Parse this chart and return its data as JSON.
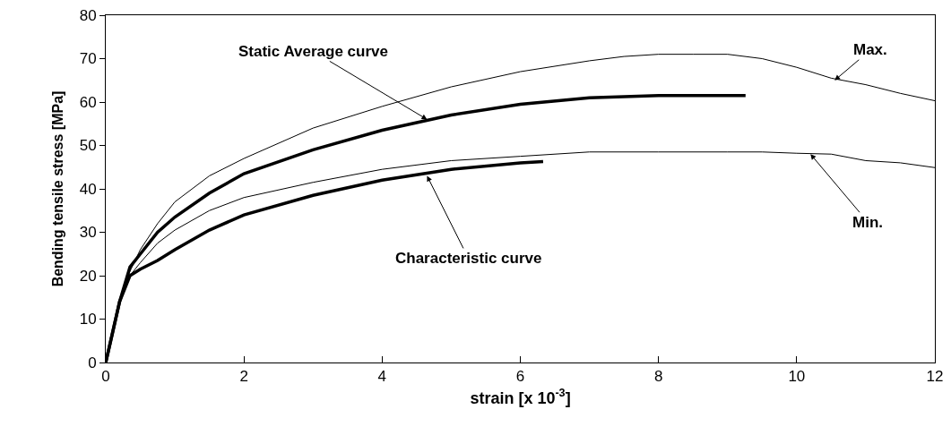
{
  "chart_data": {
    "type": "line",
    "xlabel": "strain [x 10$^{-3}$]",
    "ylabel": "Bending tensile stress [MPa]",
    "xlim": [
      0,
      12
    ],
    "xticks": [
      0,
      2,
      4,
      6,
      8,
      10,
      12
    ],
    "ylim": [
      0,
      80
    ],
    "yticks": [
      0,
      10,
      20,
      30,
      40,
      50,
      60,
      70,
      80
    ],
    "marker": "none",
    "line_style": "solid",
    "series": [
      {
        "color": "#000000",
        "x": [
          0,
          0.1,
          0.2,
          0.35,
          0.5,
          0.75,
          1,
          1.5,
          2,
          3,
          4,
          5,
          6,
          7,
          7.5,
          8,
          8.5,
          9,
          9.5,
          10,
          10.5,
          11,
          11.5,
          12
        ],
        "values": [
          0,
          7,
          14,
          21,
          26,
          32,
          37,
          43,
          47,
          54,
          59,
          63.5,
          67,
          69.5,
          70.5,
          71,
          71,
          71,
          70,
          68,
          65.5,
          64,
          62,
          60.3
        ]
      },
      {
        "color": "#000000",
        "x": [
          0,
          0.1,
          0.2,
          0.35,
          0.5,
          0.75,
          1,
          1.5,
          2,
          3,
          4,
          5,
          6,
          7,
          8,
          9,
          9.26
        ],
        "values": [
          0,
          7,
          14,
          22,
          25,
          30,
          33.5,
          39,
          43.5,
          49,
          53.5,
          57,
          59.5,
          61,
          61.5,
          61.5,
          61.5
        ]
      },
      {
        "color": "#000000",
        "x": [
          0,
          0.1,
          0.2,
          0.35,
          0.5,
          0.75,
          1,
          1.5,
          2,
          3,
          4,
          5,
          6,
          7,
          8,
          9,
          9.5,
          10,
          10.5,
          11,
          11.5,
          12
        ],
        "values": [
          0,
          7,
          14,
          20,
          23,
          27.5,
          30.5,
          35,
          38,
          41.5,
          44.5,
          46.5,
          47.5,
          48.5,
          48.5,
          48.5,
          48.5,
          48.2,
          48,
          46.5,
          46,
          44.9
        ]
      },
      {
        "color": "#000000",
        "x": [
          0,
          0.1,
          0.2,
          0.35,
          0.5,
          0.75,
          1,
          1.5,
          2,
          3,
          4,
          5,
          6,
          6.33
        ],
        "values": [
          0,
          7,
          14,
          20,
          21.5,
          23.5,
          26,
          30.5,
          34,
          38.5,
          42,
          44.5,
          46,
          46.3
        ]
      }
    ],
    "annotations": [
      {
        "text": "Max.",
        "x": 10.55,
        "y": 65
      },
      {
        "text": "Static Average curve",
        "x": 4.65,
        "y": 56
      },
      {
        "text": "Min.",
        "x": 10.2,
        "y": 48
      },
      {
        "text": "Characteristic curve",
        "x": 4.65,
        "y": 43
      }
    ]
  }
}
